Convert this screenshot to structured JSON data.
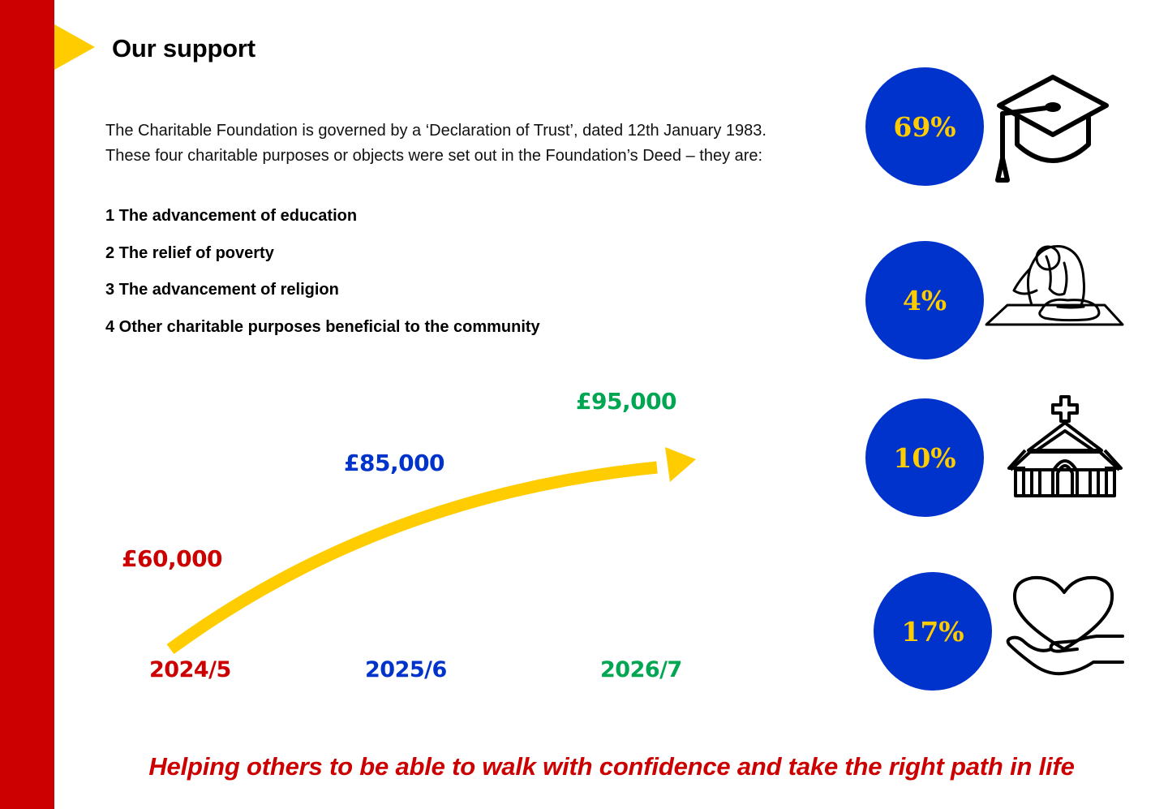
{
  "header": {
    "title": "Our support"
  },
  "intro": {
    "line1": "The Charitable Foundation is governed by a ‘Declaration of Trust’, dated 12th January 1983.",
    "line2": "These four charitable purposes or objects were set out in the Foundation’s Deed – they are:"
  },
  "purposes": [
    "1 The advancement of education",
    "2 The relief of poverty",
    "3 The advancement of religion",
    "4 Other charitable purposes beneficial to the community"
  ],
  "growth": {
    "amounts": [
      "£60,000",
      "£85,000",
      "£95,000"
    ],
    "years": [
      "2024/5",
      "2025/6",
      "2026/7"
    ],
    "colors": [
      "#cc0000",
      "#0033cc",
      "#00a651"
    ],
    "arrow_color": "#ffcc00"
  },
  "allocations": [
    {
      "percent": "69%",
      "icon": "graduation-cap-icon"
    },
    {
      "percent": "4%",
      "icon": "homeless-person-icon"
    },
    {
      "percent": "10%",
      "icon": "church-icon"
    },
    {
      "percent": "17%",
      "icon": "heart-in-hand-icon"
    }
  ],
  "tagline": "Helping others to be able to walk with confidence and take the right path in life",
  "colors": {
    "sidebar": "#cc0000",
    "accent_yellow": "#ffcc00",
    "badge_blue": "#0033cc"
  }
}
